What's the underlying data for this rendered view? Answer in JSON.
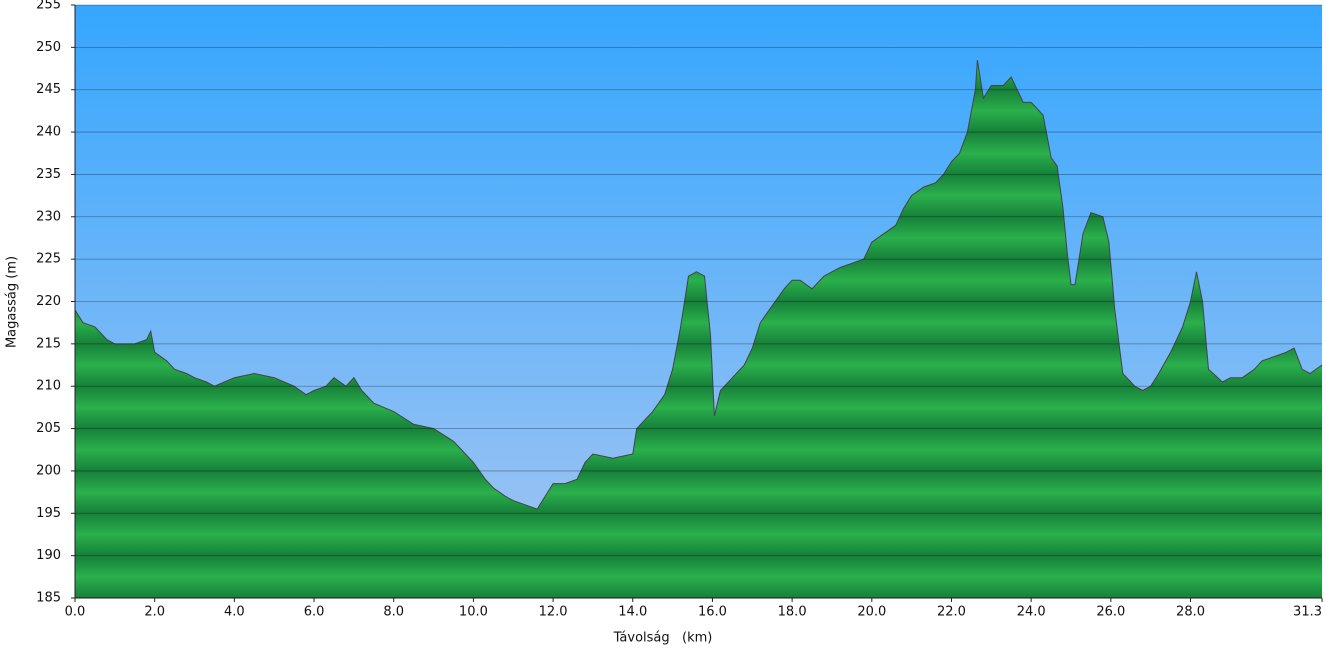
{
  "chart_data": {
    "type": "area",
    "x_label": "Távolság   (km)",
    "y_label": "Magasság (m)",
    "x": [
      0.0,
      0.2,
      0.5,
      0.8,
      1.0,
      1.5,
      1.8,
      1.9,
      2.0,
      2.3,
      2.5,
      2.8,
      3.0,
      3.3,
      3.5,
      4.0,
      4.5,
      5.0,
      5.5,
      5.8,
      6.0,
      6.3,
      6.5,
      6.8,
      7.0,
      7.2,
      7.5,
      8.0,
      8.5,
      9.0,
      9.5,
      10.0,
      10.3,
      10.5,
      10.8,
      11.0,
      11.3,
      11.6,
      12.0,
      12.3,
      12.6,
      12.8,
      13.0,
      13.5,
      14.0,
      14.1,
      14.5,
      14.8,
      15.0,
      15.2,
      15.4,
      15.6,
      15.8,
      15.95,
      16.05,
      16.2,
      16.5,
      16.8,
      17.0,
      17.2,
      17.5,
      17.8,
      18.0,
      18.2,
      18.5,
      18.8,
      19.0,
      19.2,
      19.5,
      19.8,
      20.0,
      20.3,
      20.6,
      20.8,
      21.0,
      21.3,
      21.6,
      21.8,
      22.0,
      22.2,
      22.4,
      22.6,
      22.65,
      22.8,
      23.0,
      23.3,
      23.5,
      23.8,
      24.0,
      24.3,
      24.5,
      24.65,
      24.8,
      24.9,
      25.0,
      25.1,
      25.3,
      25.5,
      25.8,
      25.95,
      26.1,
      26.3,
      26.6,
      26.8,
      27.0,
      27.2,
      27.5,
      27.8,
      28.0,
      28.15,
      28.3,
      28.45,
      28.8,
      29.0,
      29.3,
      29.6,
      29.8,
      30.1,
      30.4,
      30.6,
      30.8,
      31.0,
      31.3
    ],
    "values": [
      219,
      217.5,
      217,
      215.5,
      215,
      215,
      215.5,
      216.5,
      214,
      213,
      212,
      211.5,
      211,
      210.5,
      210,
      211,
      211.5,
      211,
      210,
      209,
      209.5,
      210,
      211,
      210,
      211,
      209.5,
      208,
      207,
      205.5,
      205,
      203.5,
      201,
      199,
      198,
      197,
      196.5,
      196,
      195.5,
      198.5,
      198.5,
      199,
      201,
      202,
      201.5,
      202,
      205,
      207,
      209,
      212,
      217,
      223,
      223.5,
      223,
      216,
      206.5,
      209.5,
      211,
      212.5,
      214.5,
      217.5,
      219.5,
      221.5,
      222.5,
      222.5,
      221.5,
      223,
      223.5,
      224,
      224.5,
      225,
      227,
      228,
      229,
      231,
      232.5,
      233.5,
      234,
      235,
      236.5,
      237.5,
      240,
      245,
      248.5,
      244,
      245.5,
      245.5,
      246.5,
      243.5,
      243.5,
      242,
      237,
      236,
      231,
      226,
      222,
      222,
      228,
      230.5,
      230,
      227,
      219,
      211.5,
      210,
      209.5,
      210,
      211.5,
      214,
      217,
      220,
      223.5,
      220,
      212,
      210.5,
      211,
      211,
      212,
      213,
      213.5,
      214,
      214.5,
      212,
      211.5,
      212.5
    ],
    "color": "#1f9e45",
    "line_color": "#444444",
    "xlim": [
      0,
      31.3
    ],
    "ylim": [
      185,
      255
    ],
    "xticks": [
      {
        "value": 0,
        "label": "0.0"
      },
      {
        "value": 2,
        "label": "2.0"
      },
      {
        "value": 4,
        "label": "4.0"
      },
      {
        "value": 6,
        "label": "6.0"
      },
      {
        "value": 8,
        "label": "8.0"
      },
      {
        "value": 10,
        "label": "10.0"
      },
      {
        "value": 12,
        "label": "12.0"
      },
      {
        "value": 14,
        "label": "14.0"
      },
      {
        "value": 16,
        "label": "16.0"
      },
      {
        "value": 18,
        "label": "18.0"
      },
      {
        "value": 20,
        "label": "20.0"
      },
      {
        "value": 22,
        "label": "22.0"
      },
      {
        "value": 24,
        "label": "24.0"
      },
      {
        "value": 26,
        "label": "26.0"
      },
      {
        "value": 28,
        "label": "28.0"
      },
      {
        "value": 31.3,
        "label": "31.3"
      }
    ],
    "yticks": [
      185,
      190,
      195,
      200,
      205,
      210,
      215,
      220,
      225,
      230,
      235,
      240,
      245,
      250,
      255
    ],
    "grid": true
  }
}
